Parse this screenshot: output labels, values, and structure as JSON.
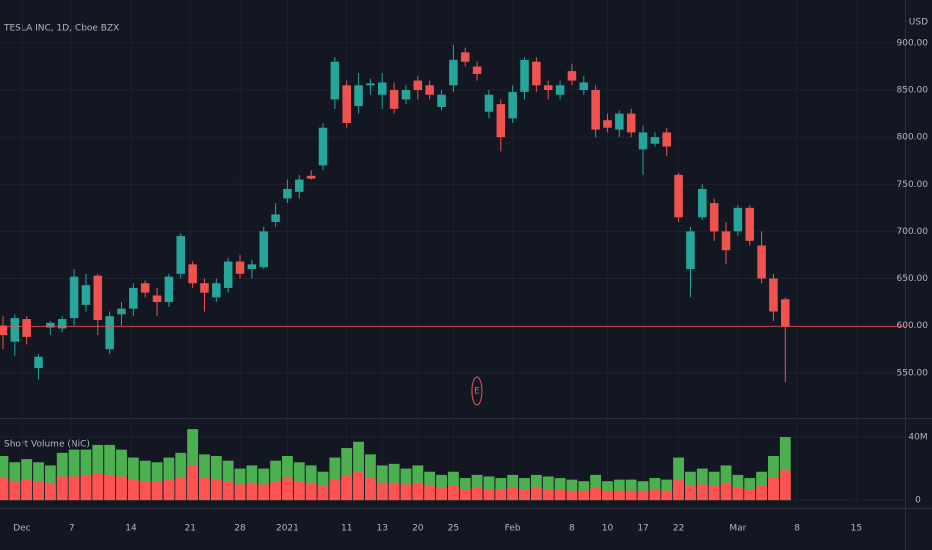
{
  "chart_data": [
    {
      "type": "candlestick",
      "title": "TESLA INC, 1D, Cboe BZX",
      "currency": "USD",
      "annotation": "E",
      "up_color": "#26a69a",
      "down_color": "#ef5350",
      "x": [
        0,
        1,
        2,
        3,
        4,
        5,
        6,
        7,
        8,
        9,
        10,
        11,
        12,
        13,
        14,
        15,
        16,
        17,
        18,
        19,
        20,
        21,
        22,
        23,
        24,
        25,
        26,
        27,
        28,
        29,
        30,
        31,
        32,
        33,
        34,
        35,
        36,
        37,
        38,
        39,
        40,
        41,
        42,
        43,
        44,
        45,
        46,
        47,
        48,
        49,
        50,
        51,
        52,
        53,
        54,
        55,
        56,
        57,
        58,
        59,
        60,
        61,
        62,
        63,
        64,
        65,
        66
      ],
      "open": [
        600,
        583,
        607,
        555,
        598,
        597,
        608,
        622,
        653,
        575,
        612,
        618,
        645,
        632,
        625,
        655,
        665,
        645,
        630,
        640,
        668,
        660,
        662,
        710,
        735,
        742,
        759,
        770,
        840,
        855,
        833,
        855,
        845,
        850,
        840,
        860,
        855,
        832,
        855,
        890,
        875,
        827,
        835,
        820,
        848,
        880,
        855,
        845,
        870,
        850,
        850,
        818,
        808,
        825,
        787,
        793,
        805,
        760,
        660,
        715,
        730,
        700,
        700,
        725,
        685,
        650,
        628
      ],
      "high": [
        610,
        612,
        610,
        570,
        605,
        610,
        660,
        655,
        655,
        615,
        625,
        645,
        648,
        640,
        655,
        698,
        668,
        650,
        650,
        672,
        675,
        670,
        705,
        730,
        755,
        760,
        765,
        815,
        885,
        860,
        868,
        862,
        868,
        858,
        855,
        865,
        860,
        850,
        898,
        895,
        880,
        850,
        840,
        855,
        885,
        885,
        860,
        860,
        878,
        865,
        855,
        825,
        828,
        830,
        812,
        805,
        810,
        762,
        705,
        750,
        735,
        710,
        728,
        728,
        700,
        655,
        630
      ],
      "low": [
        575,
        568,
        580,
        543,
        590,
        593,
        600,
        615,
        590,
        570,
        600,
        610,
        630,
        610,
        620,
        650,
        640,
        615,
        625,
        635,
        650,
        650,
        660,
        705,
        730,
        735,
        755,
        765,
        830,
        810,
        825,
        845,
        830,
        825,
        835,
        840,
        840,
        828,
        848,
        875,
        860,
        820,
        785,
        815,
        840,
        848,
        840,
        840,
        855,
        845,
        800,
        805,
        800,
        800,
        760,
        790,
        780,
        710,
        630,
        712,
        690,
        665,
        695,
        685,
        645,
        605,
        540
      ],
      "close": [
        590,
        608,
        588,
        567,
        603,
        607,
        652,
        643,
        606,
        610,
        618,
        640,
        635,
        625,
        652,
        695,
        645,
        635,
        645,
        668,
        655,
        665,
        700,
        718,
        745,
        755,
        756,
        810,
        880,
        815,
        855,
        857,
        858,
        830,
        850,
        850,
        845,
        845,
        882,
        880,
        867,
        845,
        800,
        848,
        882,
        855,
        850,
        855,
        860,
        858,
        808,
        810,
        825,
        805,
        805,
        800,
        790,
        715,
        700,
        745,
        700,
        680,
        725,
        690,
        650,
        615,
        599
      ],
      "xlim": [
        -0.25,
        76.1
      ],
      "xticks": [
        {
          "value": 1.6,
          "label": "Dec"
        },
        {
          "value": 5.8,
          "label": "7"
        },
        {
          "value": 10.8,
          "label": "14"
        },
        {
          "value": 15.8,
          "label": "21"
        },
        {
          "value": 20,
          "label": "28"
        },
        {
          "value": 24,
          "label": "2021"
        },
        {
          "value": 29,
          "label": "11"
        },
        {
          "value": 32,
          "label": "13"
        },
        {
          "value": 35,
          "label": "20"
        },
        {
          "value": 38,
          "label": "25"
        },
        {
          "value": 43,
          "label": "Feb"
        },
        {
          "value": 48,
          "label": "8"
        },
        {
          "value": 51,
          "label": "10"
        },
        {
          "value": 54,
          "label": "17"
        },
        {
          "value": 57,
          "label": "22"
        },
        {
          "value": 62,
          "label": "Mar"
        },
        {
          "value": 67,
          "label": "8"
        },
        {
          "value": 72,
          "label": "15"
        }
      ],
      "ylim": [
        502,
        945.5
      ],
      "yticks": [
        {
          "value": 550,
          "label": "550.00"
        },
        {
          "value": 600,
          "label": "600.00"
        },
        {
          "value": 650,
          "label": "650.00"
        },
        {
          "value": 700,
          "label": "700.00"
        },
        {
          "value": 750,
          "label": "750.00"
        },
        {
          "value": 800,
          "label": "800.00"
        },
        {
          "value": 850,
          "label": "850.00"
        },
        {
          "value": 900,
          "label": "900.00"
        }
      ],
      "grid": true
    },
    {
      "type": "bar",
      "title": "Short Volume (NiC)",
      "series": [
        {
          "color": "#4caf50",
          "values": [
            28,
            24,
            26,
            24,
            22,
            30,
            32,
            32,
            35,
            35,
            32,
            27,
            25,
            24,
            27,
            30,
            45,
            29,
            28,
            25,
            20,
            22,
            20,
            25,
            28,
            24,
            22,
            18,
            27,
            33,
            37,
            29,
            22,
            23,
            20,
            22,
            18,
            16,
            18,
            14,
            16,
            15,
            14,
            16,
            14,
            16,
            15,
            14,
            13,
            12,
            16,
            12,
            13,
            13,
            12,
            14,
            13,
            27,
            18,
            20,
            18,
            22,
            16,
            14,
            18,
            28,
            40
          ]
        },
        {
          "color": "#ff5252",
          "values": [
            14,
            12,
            13,
            12,
            11,
            15,
            15,
            16,
            17,
            16,
            15,
            13,
            12,
            12,
            13,
            14,
            22,
            14,
            13,
            12,
            10,
            11,
            10,
            12,
            14,
            12,
            11,
            9,
            13,
            16,
            18,
            14,
            11,
            11,
            10,
            11,
            9,
            8,
            9,
            7,
            8,
            7,
            7,
            8,
            7,
            8,
            7,
            7,
            6,
            6,
            8,
            6,
            6,
            6,
            6,
            7,
            6,
            13,
            9,
            10,
            9,
            11,
            8,
            7,
            9,
            14,
            19
          ]
        }
      ],
      "ylim": [
        -5,
        50.8
      ],
      "yticks": [
        0,
        {
          "value": 40,
          "label": "40M"
        }
      ]
    }
  ]
}
